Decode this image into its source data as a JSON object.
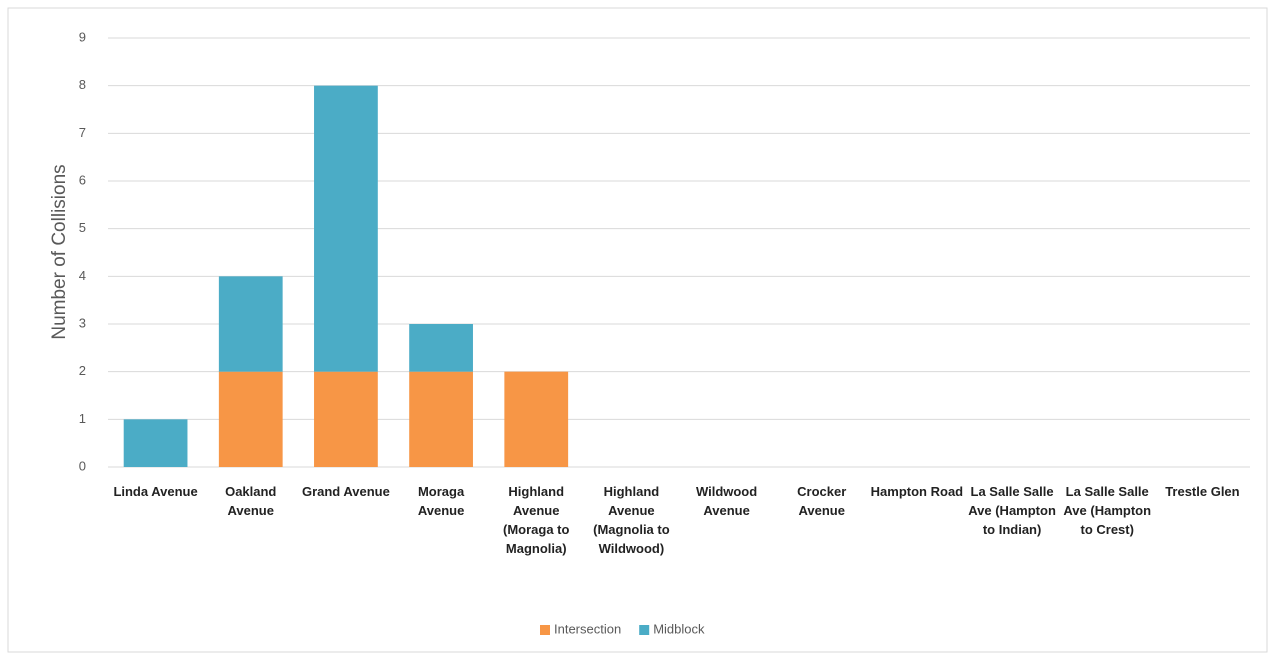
{
  "chart_data": {
    "type": "stacked_bar",
    "y_label": "Number of Collisions",
    "categories": [
      "Linda Avenue",
      "Oakland Avenue",
      "Grand Avenue",
      "Moraga Avenue",
      "Highland Avenue (Moraga to Magnolia)",
      "Highland Avenue (Magnolia to Wildwood)",
      "Wildwood Avenue",
      "Crocker Avenue",
      "Hampton Road",
      "La Salle Salle Ave (Hampton to Indian)",
      "La Salle Salle Ave (Hampton to Crest)",
      "Trestle Glen"
    ],
    "series": [
      {
        "name": "Intersection",
        "color": "#f79646",
        "values": [
          0,
          2,
          2,
          2,
          2,
          0,
          0,
          0,
          0,
          0,
          0,
          0
        ]
      },
      {
        "name": "Midblock",
        "color": "#4bacc6",
        "values": [
          1,
          2,
          6,
          1,
          0,
          0,
          0,
          0,
          0,
          0,
          0,
          0
        ]
      }
    ],
    "ylim": [
      0,
      9
    ],
    "yticks": [
      0,
      1,
      2,
      3,
      4,
      5,
      6,
      7,
      8,
      9
    ],
    "grid": true,
    "legend": "bottom"
  }
}
